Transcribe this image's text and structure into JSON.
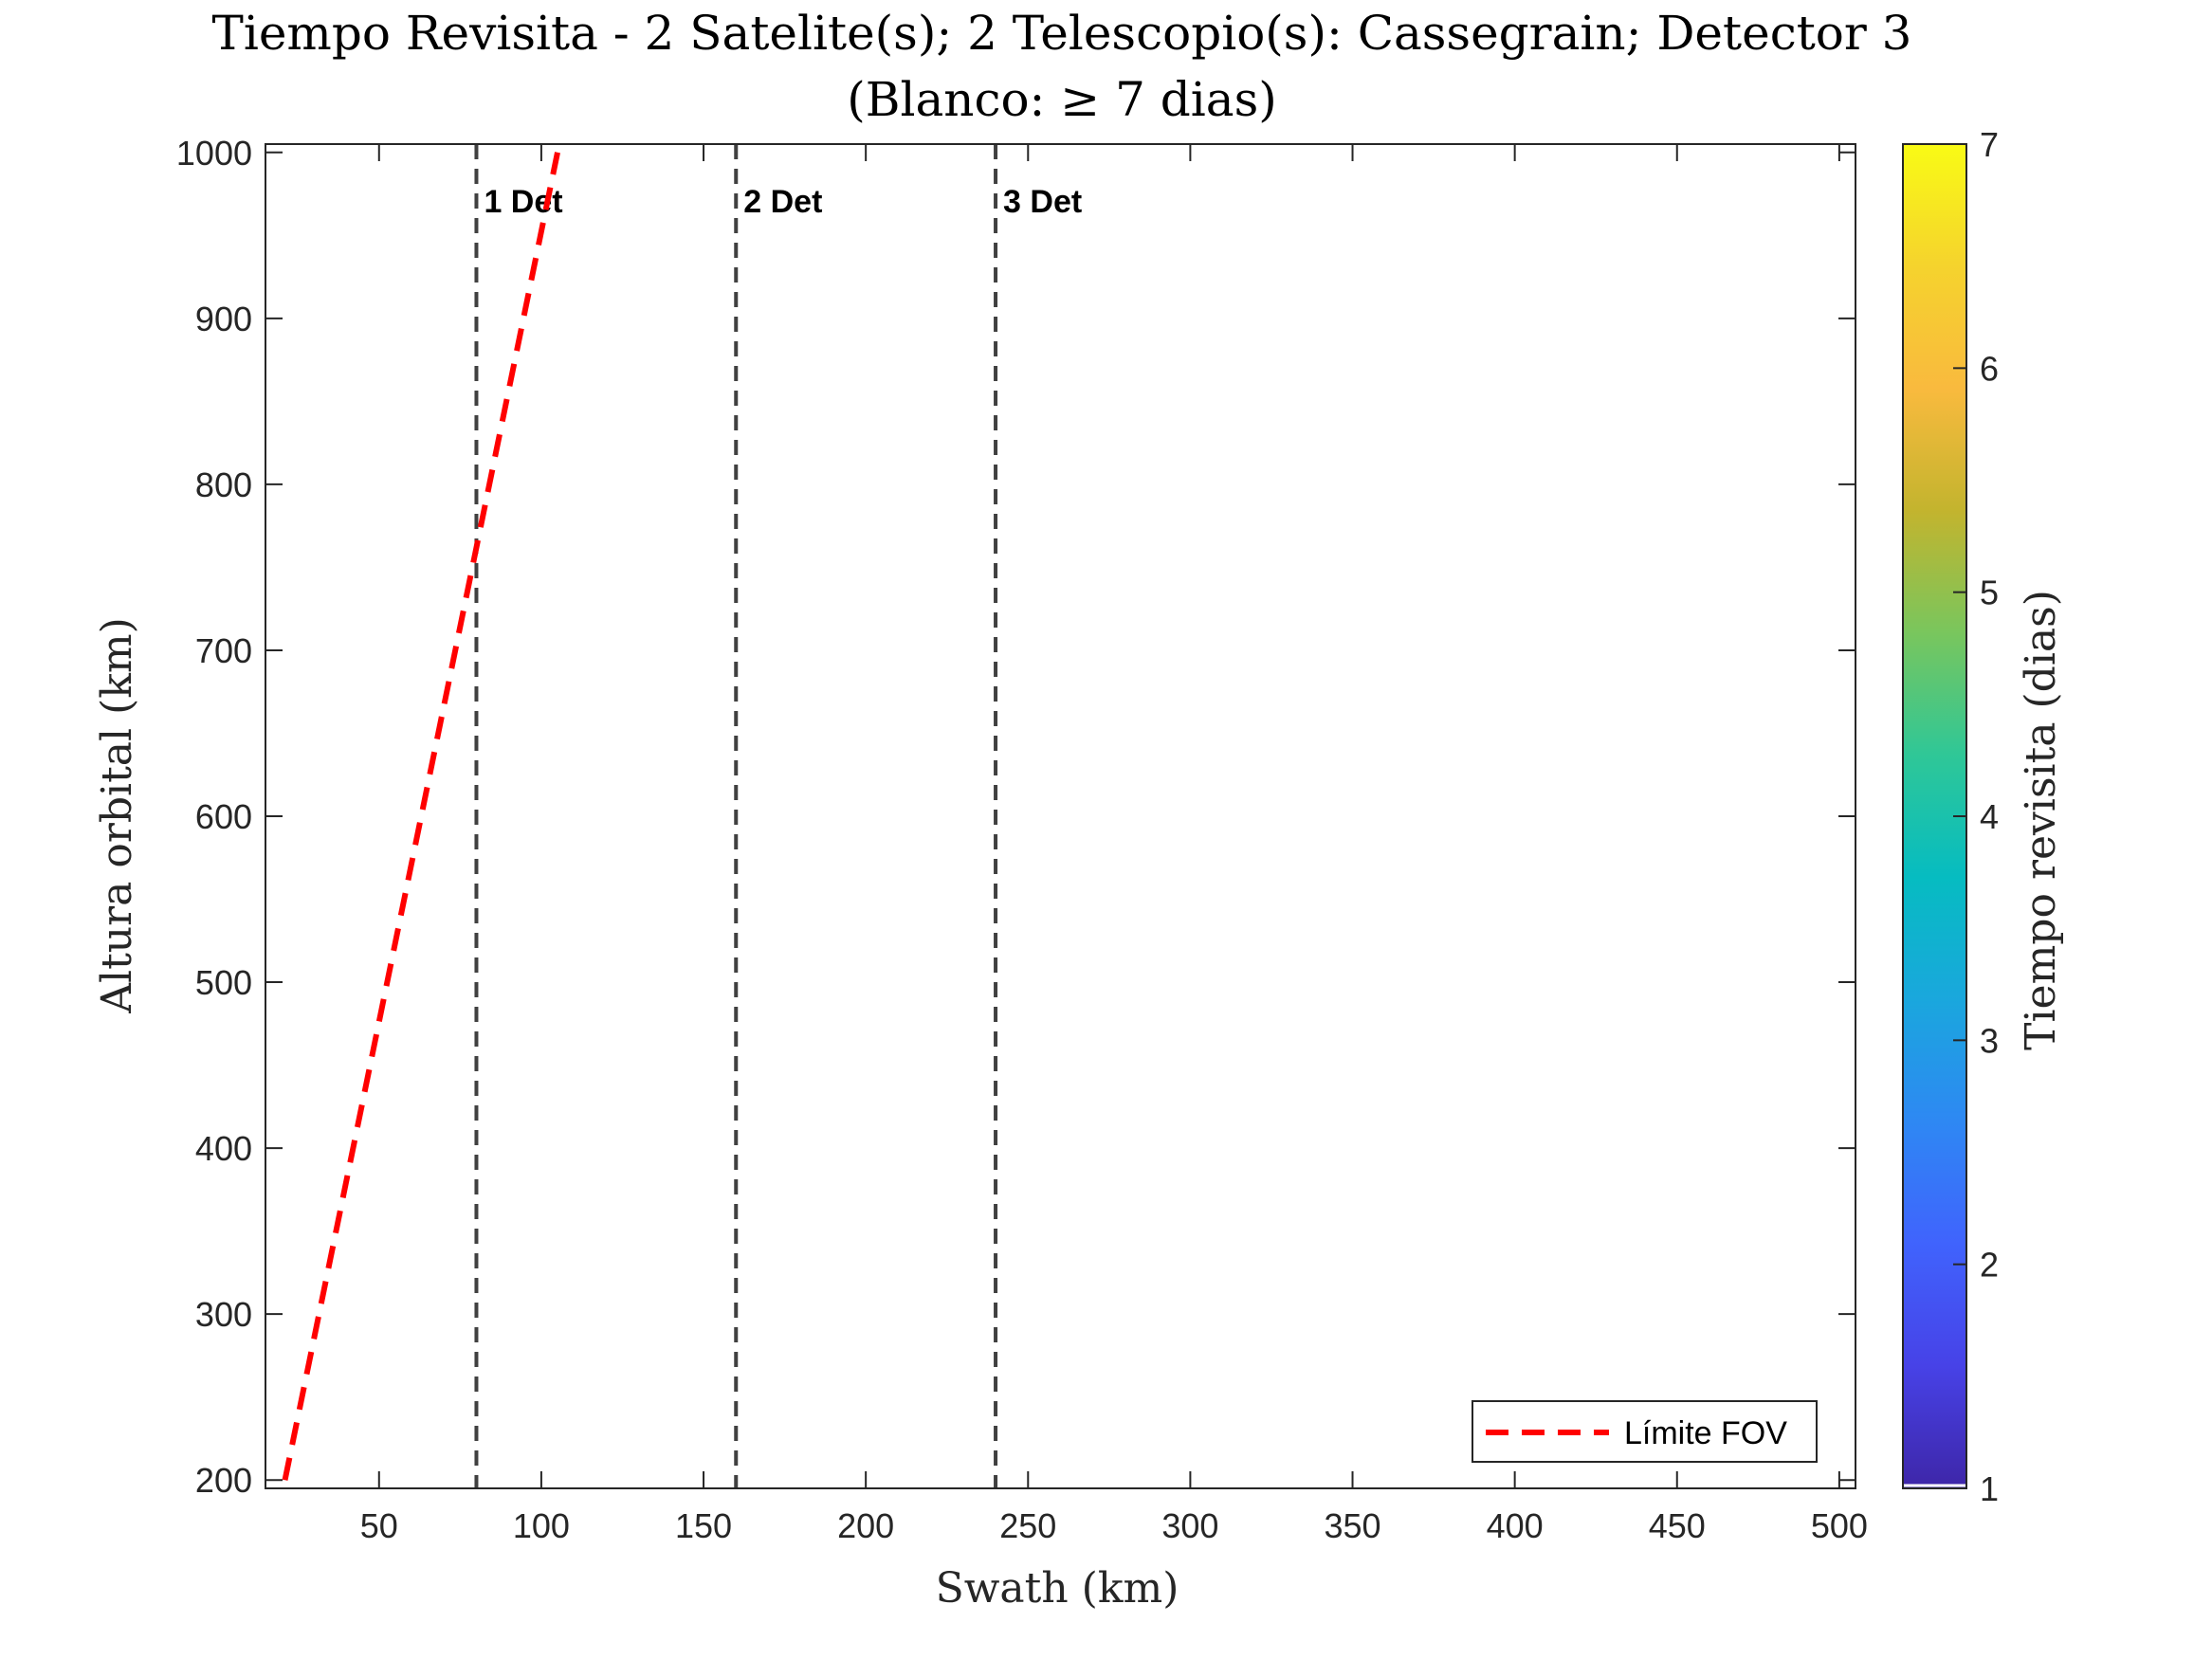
{
  "chart_data": {
    "type": "line",
    "title": "Tiempo Revisita - 2 Satelite(s); 2 Telescopio(s): Cassegrain; Detector 3",
    "subtitle": "(Blanco: ≥ 7 dias)",
    "xlabel": "Swath (km)",
    "ylabel": "Altura orbital (km)",
    "xlim": [
      15,
      505
    ],
    "ylim": [
      195,
      1005
    ],
    "xticks": [
      50,
      100,
      150,
      200,
      250,
      300,
      350,
      400,
      450,
      500
    ],
    "yticks": [
      200,
      300,
      400,
      500,
      600,
      700,
      800,
      900,
      1000
    ],
    "grid": false,
    "series": [
      {
        "name": "Límite FOV",
        "style": "dashed",
        "color": "#ff0000",
        "x": [
          21,
          105
        ],
        "y": [
          200,
          1000
        ]
      }
    ],
    "reference_lines": [
      {
        "x": 80,
        "label": "1 Det"
      },
      {
        "x": 160,
        "label": "2 Det"
      },
      {
        "x": 240,
        "label": "3 Det"
      }
    ],
    "reference_line_color": "#404040",
    "legend": {
      "position": "bottom-right",
      "entries": [
        "Límite FOV"
      ]
    },
    "colorbar": {
      "label": "Tiempo revisita (dias)",
      "range": [
        1,
        7
      ],
      "ticks": [
        1,
        2,
        3,
        4,
        5,
        6,
        7
      ],
      "colormap": "parula",
      "stops": [
        "#3e26a8",
        "#4742e7",
        "#4063fd",
        "#2e88f3",
        "#1aa7dd",
        "#06bcc1",
        "#2fc797",
        "#79c65d",
        "#c3b42e",
        "#f9ba3e",
        "#f5d32d",
        "#f9fb15"
      ]
    }
  }
}
